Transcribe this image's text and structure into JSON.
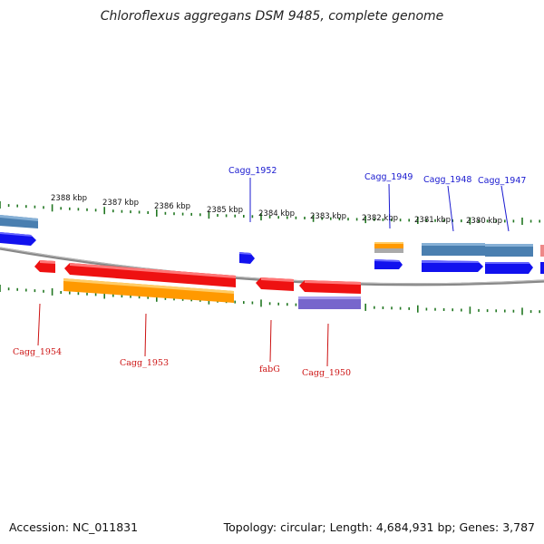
{
  "title": "Chloroflexus aggregans DSM 9485, complete genome",
  "footer": {
    "accession": "Accession: NC_011831",
    "topology": "Topology: circular; Length: 4,684,931 bp; Genes: 3,787"
  },
  "scale_labels": [
    "2388 kbp",
    "2387 kbp",
    "2386 kbp",
    "2385 kbp",
    "2384 kbp",
    "2383 kbp",
    "2382 kbp",
    "2381 kbp",
    "2380 kbp"
  ],
  "top_gene_labels": [
    "Cagg_1952",
    "Cagg_1949",
    "Cagg_1948",
    "Cagg_1947"
  ],
  "bottom_gene_labels": [
    "Cagg_1954",
    "Cagg_1953",
    "fabG",
    "Cagg_1950"
  ],
  "colors": {
    "red": "#ee1111",
    "orange": "#ff9900",
    "blue": "#1111ee",
    "steelblue": "#4a7fb0",
    "purple": "#7766cc",
    "tick": "#227722",
    "backbone": "#888888"
  }
}
